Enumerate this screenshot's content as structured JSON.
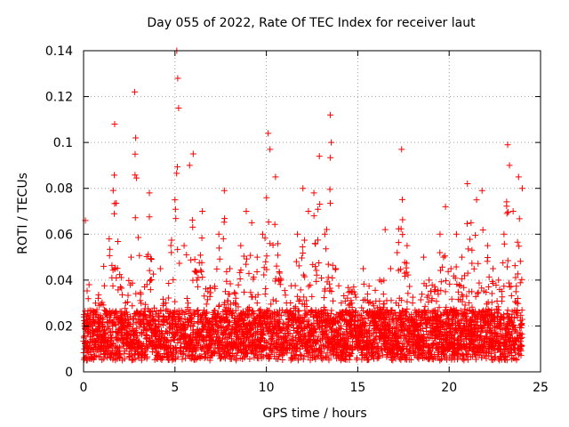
{
  "chart_data": {
    "type": "scatter",
    "title": "Day 055 of 2022, Rate Of TEC Index for receiver laut",
    "xlabel": "GPS time / hours",
    "ylabel": "ROTI / TECUs",
    "xlim": [
      0,
      25
    ],
    "ylim": [
      0,
      0.14
    ],
    "x_ticks": [
      0,
      5,
      10,
      15,
      20,
      25
    ],
    "y_ticks": [
      0,
      0.02,
      0.04,
      0.06,
      0.08,
      0.1,
      0.12,
      0.14
    ],
    "x_tick_labels": [
      "0",
      "5",
      "10",
      "15",
      "20",
      "25"
    ],
    "y_tick_labels": [
      "0",
      "0.02",
      "0.04",
      "0.06",
      "0.08",
      "0.1",
      "0.12",
      "0.14"
    ],
    "grid": true,
    "marker": "+",
    "color": "#ff0000",
    "series": [
      {
        "name": "ROTI",
        "x": [
          0.1,
          0.15,
          0.3,
          0.5,
          0.8,
          1.1,
          1.4,
          1.7,
          2.0,
          2.3,
          2.6,
          2.8,
          2.85,
          3.1,
          3.4,
          3.6,
          3.9,
          4.2,
          4.5,
          4.8,
          5.0,
          5.1,
          5.15,
          5.2,
          5.5,
          5.8,
          6.0,
          6.2,
          6.5,
          6.8,
          7.1,
          7.4,
          7.7,
          8.0,
          8.3,
          8.6,
          8.9,
          9.2,
          9.5,
          9.8,
          10.1,
          10.2,
          10.5,
          10.8,
          11.1,
          11.4,
          11.7,
          12.0,
          12.3,
          12.6,
          12.9,
          13.2,
          13.5,
          13.55,
          13.8,
          14.1,
          14.4,
          14.7,
          15.0,
          15.3,
          15.6,
          15.9,
          16.2,
          16.5,
          16.8,
          17.1,
          17.4,
          17.7,
          18.0,
          18.3,
          18.6,
          18.9,
          19.2,
          19.5,
          19.8,
          20.1,
          20.4,
          20.7,
          21.0,
          21.2,
          21.5,
          21.8,
          22.1,
          22.4,
          22.7,
          23.0,
          23.2,
          23.3,
          23.5,
          23.8,
          24.0
        ],
        "y": [
          0.066,
          0.012,
          0.038,
          0.02,
          0.014,
          0.046,
          0.058,
          0.108,
          0.022,
          0.03,
          0.05,
          0.122,
          0.102,
          0.025,
          0.018,
          0.078,
          0.02,
          0.045,
          0.03,
          0.052,
          0.075,
          0.14,
          0.128,
          0.115,
          0.055,
          0.09,
          0.095,
          0.04,
          0.07,
          0.035,
          0.025,
          0.06,
          0.079,
          0.045,
          0.03,
          0.055,
          0.07,
          0.065,
          0.05,
          0.06,
          0.104,
          0.097,
          0.085,
          0.04,
          0.03,
          0.025,
          0.06,
          0.08,
          0.07,
          0.078,
          0.094,
          0.06,
          0.112,
          0.1,
          0.045,
          0.03,
          0.022,
          0.035,
          0.02,
          0.045,
          0.03,
          0.025,
          0.04,
          0.062,
          0.045,
          0.03,
          0.097,
          0.055,
          0.03,
          0.025,
          0.05,
          0.04,
          0.035,
          0.06,
          0.072,
          0.045,
          0.06,
          0.05,
          0.082,
          0.065,
          0.075,
          0.079,
          0.055,
          0.045,
          0.04,
          0.06,
          0.099,
          0.09,
          0.07,
          0.085,
          0.08
        ]
      }
    ]
  }
}
